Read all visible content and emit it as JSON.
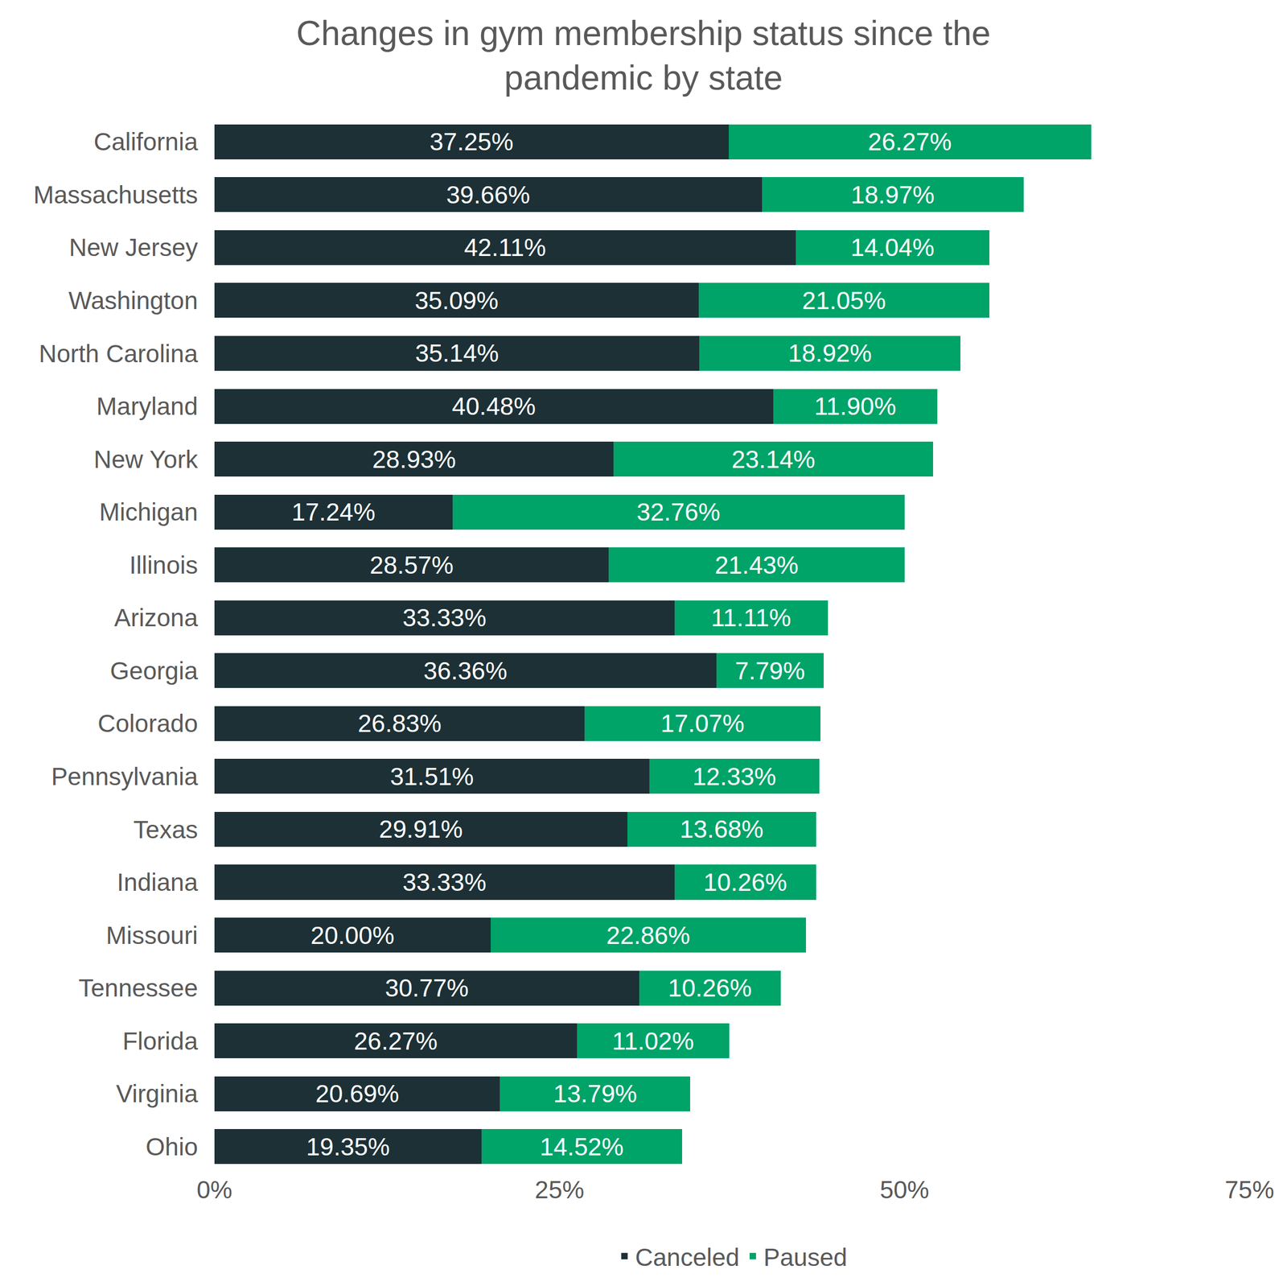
{
  "chart_data": {
    "type": "bar",
    "title": "Changes in gym membership status since the pandemic by state",
    "orientation": "horizontal",
    "stacked": true,
    "data_labels": true,
    "legend": "bottom",
    "grid": false,
    "categories": [
      "California",
      "Massachusetts",
      "New Jersey",
      "Washington",
      "North Carolina",
      "Maryland",
      "New York",
      "Michigan",
      "Illinois",
      "Arizona",
      "Georgia",
      "Colorado",
      "Pennsylvania",
      "Texas",
      "Indiana",
      "Missouri",
      "Tennessee",
      "Florida",
      "Virginia",
      "Ohio"
    ],
    "series": [
      {
        "name": "Canceled",
        "color": "#1c3036",
        "values": [
          37.25,
          39.66,
          42.11,
          35.09,
          35.14,
          40.48,
          28.93,
          17.24,
          28.57,
          33.33,
          36.36,
          26.83,
          31.51,
          29.91,
          33.33,
          20.0,
          30.77,
          26.27,
          20.69,
          19.35
        ],
        "value_labels": [
          "37.25%",
          "39.66%",
          "42.11%",
          "35.09%",
          "35.14%",
          "40.48%",
          "28.93%",
          "17.24%",
          "28.57%",
          "33.33%",
          "36.36%",
          "26.83%",
          "31.51%",
          "29.91%",
          "33.33%",
          "20.00%",
          "30.77%",
          "26.27%",
          "20.69%",
          "19.35%"
        ]
      },
      {
        "name": "Paused",
        "color": "#00a368",
        "values": [
          26.27,
          18.97,
          14.04,
          21.05,
          18.92,
          11.9,
          23.14,
          32.76,
          21.43,
          11.11,
          7.79,
          17.07,
          12.33,
          13.68,
          10.26,
          22.86,
          10.26,
          11.02,
          13.79,
          14.52
        ],
        "value_labels": [
          "26.27%",
          "18.97%",
          "14.04%",
          "21.05%",
          "18.92%",
          "11.90%",
          "23.14%",
          "32.76%",
          "21.43%",
          "11.11%",
          "7.79%",
          "17.07%",
          "12.33%",
          "13.68%",
          "10.26%",
          "22.86%",
          "10.26%",
          "11.02%",
          "13.79%",
          "14.52%"
        ]
      }
    ],
    "xlim": [
      0,
      75
    ],
    "xticks": [
      {
        "value": 0,
        "label": "0%"
      },
      {
        "value": 25,
        "label": "25%"
      },
      {
        "value": 50,
        "label": "50%"
      },
      {
        "value": 75,
        "label": "75%"
      }
    ]
  }
}
